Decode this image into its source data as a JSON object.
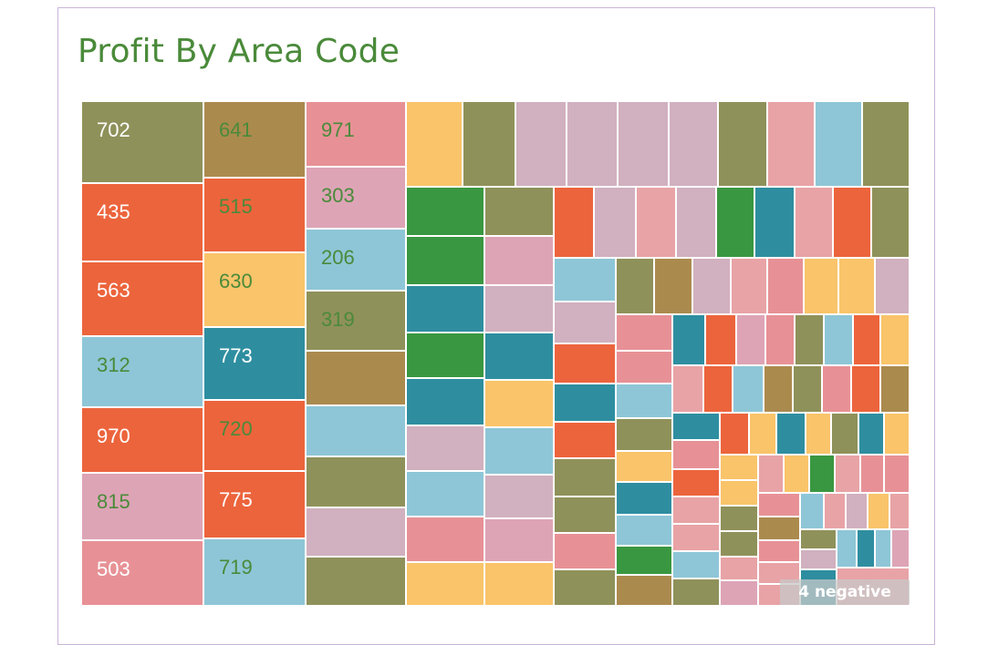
{
  "chart_data": {
    "type": "treemap",
    "title": "Profit By Area Code",
    "labeled_tiles": [
      "702",
      "641",
      "971",
      "435",
      "515",
      "303",
      "563",
      "630",
      "206",
      "312",
      "773",
      "319",
      "970",
      "720",
      "815",
      "775",
      "503",
      "719"
    ],
    "colors": {
      "olive": "#8f915a",
      "brown": "#ab8a4e",
      "orange": "#ec643c",
      "sky": "#8ec6d7",
      "teal": "#2e8ea0",
      "yellow": "#f9c46a",
      "pink": "#dda4b6",
      "salmon": "#e8a3a6",
      "mauve": "#d1b0bf",
      "green": "#3a9741",
      "coral": "#e79196"
    },
    "footnote": "4 negative"
  }
}
